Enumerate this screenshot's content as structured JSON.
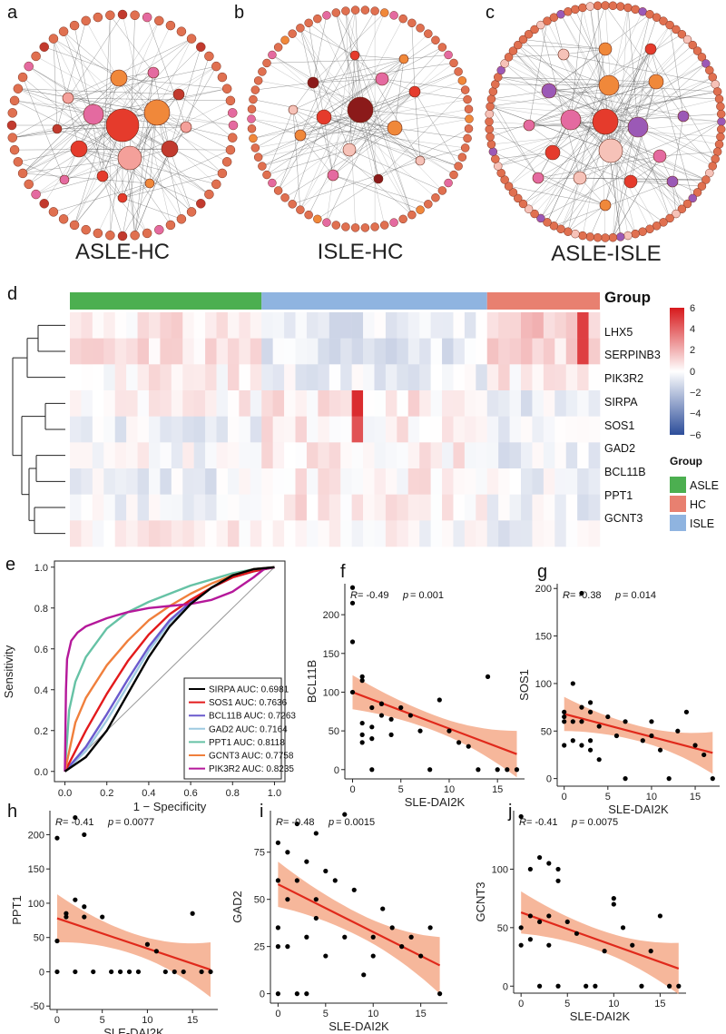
{
  "panel_labels": {
    "a": "a",
    "b": "b",
    "c": "c",
    "d": "d",
    "e": "e",
    "f": "f",
    "g": "g",
    "h": "h",
    "i": "i",
    "j": "j"
  },
  "colors": {
    "asle": "#4caf50",
    "hc": "#e88070",
    "isle": "#8fb4e0",
    "line": "#e0291b",
    "band": "#f4a582",
    "heat_low": "#2c4d9a",
    "heat_mid": "#ffffff",
    "heat_high": "#d7191c"
  },
  "chart_data": [
    {
      "id": "a",
      "type": "network",
      "title": "ASLE-HC",
      "node_colors": [
        "#e53b2c",
        "#f0883a",
        "#e46aa0",
        "#f4a09a",
        "#c23a2e"
      ]
    },
    {
      "id": "b",
      "type": "network",
      "title": "ISLE-HC",
      "node_colors": [
        "#8b1a1a",
        "#e53b2c",
        "#f0883a",
        "#f6c2b8",
        "#e46aa0"
      ]
    },
    {
      "id": "c",
      "type": "network",
      "title": "ASLE-ISLE",
      "node_colors": [
        "#e53b2c",
        "#e46aa0",
        "#9b59b6",
        "#f0883a",
        "#f6c2b8"
      ]
    },
    {
      "id": "d",
      "type": "heatmap",
      "group_title": "Group",
      "genes": [
        "LHX5",
        "SERPINB3",
        "PIK3R2",
        "SIRPA",
        "SOS1",
        "GAD2",
        "BCL11B",
        "PPT1",
        "GCNT3"
      ],
      "group_counts": {
        "ASLE": 17,
        "ISLE": 20,
        "HC": 10
      },
      "group_order": [
        "ASLE",
        "ISLE",
        "HC"
      ],
      "legend_groups": [
        "ASLE",
        "HC",
        "ISLE"
      ],
      "color_scale": {
        "min": -6,
        "max": 6,
        "ticks": [
          "6",
          "4",
          "2",
          "0",
          "−2",
          "−4",
          "−6"
        ]
      }
    },
    {
      "id": "e",
      "type": "line",
      "title": "",
      "xlabel": "1 − Specificity",
      "ylabel": "Sensitivity",
      "xlim": [
        -0.05,
        1.05
      ],
      "ylim": [
        -0.05,
        1.03
      ],
      "xticks": [
        "0.0",
        "0.2",
        "0.4",
        "0.6",
        "0.8",
        "1.0"
      ],
      "yticks": [
        "0.0",
        "0.2",
        "0.4",
        "0.6",
        "0.8",
        "1.0"
      ],
      "series": [
        {
          "name": "SIRPA",
          "auc": "0.6981",
          "label": "SIRPA AUC: 0.6981",
          "color": "#000000",
          "fpr": [
            0,
            0.1,
            0.2,
            0.3,
            0.4,
            0.5,
            0.6,
            0.7,
            0.8,
            0.9,
            1
          ],
          "tpr": [
            0,
            0.07,
            0.2,
            0.38,
            0.56,
            0.71,
            0.82,
            0.9,
            0.96,
            0.99,
            1
          ]
        },
        {
          "name": "SOS1",
          "auc": "0.7636",
          "label": "SOS1 AUC: 0.7636",
          "color": "#e31a1c",
          "fpr": [
            0,
            0.1,
            0.2,
            0.3,
            0.4,
            0.5,
            0.6,
            0.7,
            0.8,
            0.9,
            1
          ],
          "tpr": [
            0,
            0.2,
            0.38,
            0.54,
            0.67,
            0.77,
            0.84,
            0.9,
            0.95,
            0.98,
            1
          ]
        },
        {
          "name": "BCL11B",
          "auc": "0.7263",
          "label": "BCL11B AUC: 0.7263",
          "color": "#6a5acd",
          "fpr": [
            0,
            0.1,
            0.2,
            0.3,
            0.4,
            0.5,
            0.6,
            0.7,
            0.8,
            0.9,
            1
          ],
          "tpr": [
            0,
            0.12,
            0.28,
            0.45,
            0.61,
            0.74,
            0.83,
            0.9,
            0.95,
            0.98,
            1
          ]
        },
        {
          "name": "GAD2",
          "auc": "0.7164",
          "label": "GAD2 AUC: 0.7164",
          "color": "#9ecae1",
          "fpr": [
            0,
            0.1,
            0.2,
            0.3,
            0.4,
            0.5,
            0.6,
            0.7,
            0.8,
            0.9,
            1
          ],
          "tpr": [
            0,
            0.1,
            0.25,
            0.42,
            0.59,
            0.73,
            0.83,
            0.9,
            0.95,
            0.98,
            1
          ]
        },
        {
          "name": "PPT1",
          "auc": "0.8118",
          "label": "PPT1 AUC: 0.8118",
          "color": "#66c2a5",
          "fpr": [
            0,
            0.02,
            0.05,
            0.1,
            0.2,
            0.3,
            0.4,
            0.5,
            0.6,
            0.7,
            0.8,
            0.9,
            1
          ],
          "tpr": [
            0,
            0.3,
            0.44,
            0.56,
            0.7,
            0.78,
            0.83,
            0.87,
            0.91,
            0.94,
            0.97,
            0.99,
            1
          ]
        },
        {
          "name": "GCNT3",
          "auc": "0.7758",
          "label": "GCNT3 AUC: 0.7758",
          "color": "#f07f3c",
          "fpr": [
            0,
            0.05,
            0.1,
            0.2,
            0.3,
            0.4,
            0.5,
            0.6,
            0.7,
            0.8,
            0.9,
            1
          ],
          "tpr": [
            0,
            0.24,
            0.36,
            0.52,
            0.64,
            0.74,
            0.81,
            0.87,
            0.92,
            0.96,
            0.99,
            1
          ]
        },
        {
          "name": "PIK3R2",
          "auc": "0.8235",
          "label": "PIK3R2 AUC: 0.8235",
          "color": "#b5189a",
          "fpr": [
            0,
            0.005,
            0.01,
            0.03,
            0.06,
            0.1,
            0.2,
            0.3,
            0.4,
            0.5,
            0.6,
            0.7,
            0.8,
            0.9,
            0.95,
            1
          ],
          "tpr": [
            0,
            0.4,
            0.55,
            0.64,
            0.68,
            0.71,
            0.75,
            0.78,
            0.8,
            0.81,
            0.82,
            0.84,
            0.88,
            0.95,
            0.99,
            1
          ]
        }
      ]
    },
    {
      "id": "f",
      "type": "scatter",
      "xlabel": "SLE-DAI2K",
      "ylabel": "BCL11B",
      "r_label": "R",
      "r": "-0.49",
      "p_label": "p",
      "p": "0.001",
      "xlim": [
        -0.8,
        17.8
      ],
      "ylim": [
        -12,
        240
      ],
      "xticks": [
        0,
        5,
        10,
        15
      ],
      "yticks": [
        0,
        50,
        100,
        150,
        200
      ],
      "fit": {
        "x0": 0,
        "y0": 100,
        "x1": 17,
        "y1": 20
      },
      "band": {
        "start": 22,
        "mid": 10,
        "end": 30
      },
      "x": [
        0,
        0,
        0,
        0,
        1,
        1,
        1,
        1,
        1,
        2,
        2,
        2,
        2,
        3,
        3,
        3,
        4,
        4,
        5,
        6,
        7,
        8,
        9,
        10,
        11,
        12,
        13,
        14,
        15,
        16,
        17
      ],
      "y": [
        235,
        215,
        165,
        100,
        60,
        45,
        35,
        115,
        120,
        40,
        55,
        80,
        0,
        70,
        85,
        85,
        45,
        65,
        80,
        70,
        50,
        0,
        90,
        50,
        35,
        30,
        0,
        120,
        0,
        0,
        0
      ]
    },
    {
      "id": "g",
      "type": "scatter",
      "xlabel": "SLE-DAI2K",
      "ylabel": "SOS1",
      "r_label": "R",
      "r": "-0.38",
      "p_label": "p",
      "p": "0.014",
      "xlim": [
        -0.8,
        17.8
      ],
      "ylim": [
        -8,
        205
      ],
      "xticks": [
        0,
        5,
        10,
        15
      ],
      "yticks": [
        0,
        50,
        100,
        150,
        200
      ],
      "fit": {
        "x0": 0,
        "y0": 68,
        "x1": 17,
        "y1": 27
      },
      "band": {
        "start": 18,
        "mid": 8,
        "end": 22
      },
      "x": [
        0,
        0,
        0,
        0,
        1,
        1,
        1,
        2,
        2,
        2,
        2,
        3,
        3,
        3,
        3,
        4,
        4,
        5,
        6,
        7,
        7,
        9,
        10,
        10,
        11,
        12,
        13,
        14,
        15,
        16,
        17
      ],
      "y": [
        35,
        60,
        65,
        70,
        60,
        100,
        40,
        195,
        75,
        60,
        35,
        30,
        70,
        80,
        40,
        55,
        20,
        65,
        45,
        0,
        60,
        40,
        60,
        45,
        30,
        0,
        50,
        70,
        35,
        25,
        0
      ]
    },
    {
      "id": "h",
      "type": "scatter",
      "xlabel": "SLE-DAI2K",
      "ylabel": "PPT1",
      "r_label": "R",
      "r": "-0.41",
      "p_label": "p",
      "p": "0.0077",
      "xlim": [
        -0.8,
        17.8
      ],
      "ylim": [
        -55,
        235
      ],
      "xticks": [
        0,
        5,
        10,
        15
      ],
      "yticks": [
        -50,
        0,
        50,
        100,
        150,
        200
      ],
      "fit": {
        "x0": 0,
        "y0": 78,
        "x1": 17,
        "y1": 3
      },
      "band": {
        "start": 35,
        "mid": 15,
        "end": 40
      },
      "x": [
        0,
        0,
        0,
        1,
        1,
        2,
        2,
        2,
        3,
        3,
        3,
        4,
        5,
        6,
        7,
        8,
        9,
        10,
        11,
        12,
        13,
        14,
        15,
        16,
        17
      ],
      "y": [
        195,
        45,
        0,
        80,
        85,
        105,
        0,
        225,
        80,
        200,
        95,
        0,
        80,
        0,
        0,
        0,
        0,
        40,
        30,
        0,
        0,
        0,
        85,
        0,
        0
      ]
    },
    {
      "id": "i",
      "type": "scatter",
      "xlabel": "SLE-DAI2K",
      "ylabel": "GAD2",
      "r_label": "R",
      "r": "-0.48",
      "p_label": "p",
      "p": "0.0015",
      "xlim": [
        -0.8,
        17.8
      ],
      "ylim": [
        -5,
        97
      ],
      "xticks": [
        0,
        5,
        10,
        15
      ],
      "yticks": [
        0,
        25,
        50,
        75
      ],
      "fit": {
        "x0": 0,
        "y0": 58,
        "x1": 17,
        "y1": 15
      },
      "band": {
        "start": 12,
        "mid": 6,
        "end": 15
      },
      "x": [
        0,
        0,
        0,
        0,
        0,
        1,
        1,
        1,
        2,
        2,
        2,
        3,
        3,
        3,
        4,
        4,
        4,
        5,
        5,
        6,
        7,
        7,
        8,
        9,
        10,
        10,
        11,
        12,
        13,
        14,
        15,
        16,
        17
      ],
      "y": [
        80,
        60,
        35,
        25,
        0,
        75,
        50,
        25,
        90,
        60,
        0,
        70,
        30,
        0,
        50,
        85,
        40,
        65,
        20,
        60,
        95,
        30,
        55,
        10,
        30,
        20,
        45,
        35,
        25,
        30,
        20,
        35,
        0
      ]
    },
    {
      "id": "j",
      "type": "scatter",
      "xlabel": "SLE-DAI2K",
      "ylabel": "GCNT3",
      "r_label": "R",
      "r": "-0.41",
      "p_label": "p",
      "p": "0.0075",
      "xlim": [
        -0.8,
        17.8
      ],
      "ylim": [
        -6,
        150
      ],
      "xticks": [
        0,
        5,
        10,
        15
      ],
      "yticks": [
        0,
        50,
        100
      ],
      "fit": {
        "x0": 0,
        "y0": 63,
        "x1": 17,
        "y1": 15
      },
      "band": {
        "start": 18,
        "mid": 9,
        "end": 22
      },
      "x": [
        0,
        0,
        0,
        1,
        1,
        1,
        2,
        2,
        2,
        3,
        3,
        3,
        4,
        4,
        4,
        5,
        6,
        7,
        8,
        9,
        10,
        10,
        11,
        12,
        13,
        14,
        15,
        16,
        17
      ],
      "y": [
        145,
        50,
        35,
        60,
        40,
        100,
        110,
        55,
        0,
        105,
        60,
        35,
        100,
        90,
        0,
        55,
        45,
        0,
        0,
        30,
        70,
        75,
        50,
        35,
        0,
        30,
        60,
        0,
        0
      ]
    }
  ]
}
